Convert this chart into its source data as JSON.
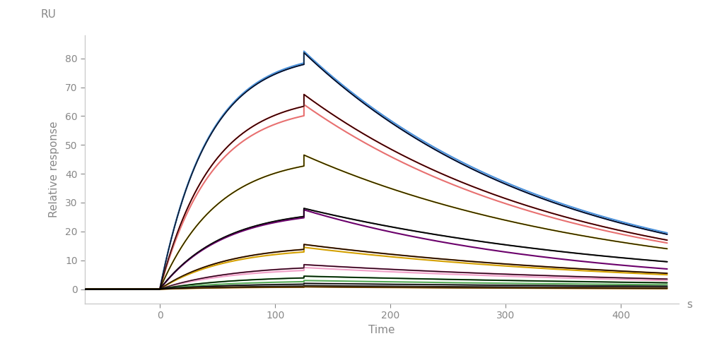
{
  "xlabel": "Time",
  "xlabel_unit": "s",
  "ylabel": "Relative response",
  "ylabel_top": "RU",
  "xlim": [
    -65,
    450
  ],
  "ylim": [
    -5,
    88
  ],
  "xticks": [
    0,
    100,
    200,
    300,
    400
  ],
  "yticks": [
    0,
    10,
    20,
    30,
    40,
    50,
    60,
    70,
    80
  ],
  "assoc_start": 0,
  "assoc_end": 125,
  "dissoc_end": 440,
  "background_color": "#ffffff",
  "curves": [
    {
      "color": "#1a3a8a",
      "peak": 82.0,
      "end_val": 19.0,
      "ka": 3.0,
      "kd": 1.5
    },
    {
      "color": "#4a90d9",
      "peak": 82.5,
      "end_val": 19.5,
      "ka": 3.0,
      "kd": 1.5
    },
    {
      "color": "#cc2222",
      "peak": 67.5,
      "end_val": 17.0,
      "ka": 2.8,
      "kd": 1.4
    },
    {
      "color": "#e87070",
      "peak": 64.0,
      "end_val": 16.0,
      "ka": 2.8,
      "kd": 1.4
    },
    {
      "color": "#c8a800",
      "peak": 46.5,
      "end_val": 14.0,
      "ka": 2.5,
      "kd": 1.3
    },
    {
      "color": "#1a1a1a",
      "peak": 28.0,
      "end_val": 9.5,
      "ka": 2.3,
      "kd": 1.3
    },
    {
      "color": "#6b006b",
      "peak": 27.5,
      "end_val": 7.0,
      "ka": 2.3,
      "kd": 1.5
    },
    {
      "color": "#8b4000",
      "peak": 15.5,
      "end_val": 5.5,
      "ka": 2.2,
      "kd": 1.4
    },
    {
      "color": "#d4a000",
      "peak": 14.5,
      "end_val": 5.0,
      "ka": 2.2,
      "kd": 1.4
    },
    {
      "color": "#cc4488",
      "peak": 8.5,
      "end_val": 3.5,
      "ka": 2.0,
      "kd": 1.4
    },
    {
      "color": "#f0a0c8",
      "peak": 7.5,
      "end_val": 3.0,
      "ka": 2.0,
      "kd": 1.4
    },
    {
      "color": "#228822",
      "peak": 4.5,
      "end_val": 2.2,
      "ka": 2.0,
      "kd": 1.4
    },
    {
      "color": "#55aa55",
      "peak": 3.0,
      "end_val": 1.5,
      "ka": 2.0,
      "kd": 1.4
    },
    {
      "color": "#555555",
      "peak": 2.0,
      "end_val": 1.0,
      "ka": 2.0,
      "kd": 1.4
    },
    {
      "color": "#111111",
      "peak": 1.2,
      "end_val": 0.5,
      "ka": 2.0,
      "kd": 1.4
    },
    {
      "color": "#e08800",
      "peak": 0.8,
      "end_val": 0.2,
      "ka": 2.0,
      "kd": 1.4
    }
  ],
  "black_curves_idx": [
    0,
    2,
    4,
    5,
    7,
    9,
    11,
    13,
    15
  ]
}
